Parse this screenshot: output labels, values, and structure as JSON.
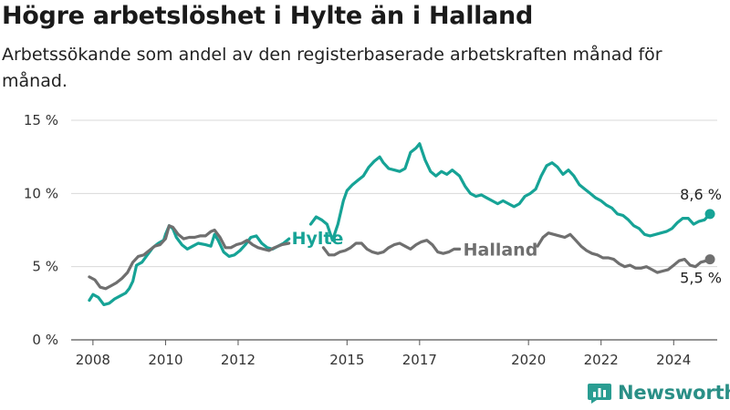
{
  "header": {
    "title": "Högre arbetslöshet i Hylte än i Halland",
    "subtitle": "Arbetssökande som andel av den registerbaserade arbetskraften månad för månad."
  },
  "brand": {
    "name": "Newsworthy",
    "icon": "bar-chart-logo-icon",
    "color": "#2a9d92"
  },
  "chart_data": {
    "type": "line",
    "ylim": [
      0,
      15
    ],
    "xlim": [
      2007.4,
      2025.2
    ],
    "y_ticks": [
      {
        "value": 0,
        "label": "0 %"
      },
      {
        "value": 5,
        "label": "5 %"
      },
      {
        "value": 10,
        "label": "10 %"
      },
      {
        "value": 15,
        "label": "15 %"
      }
    ],
    "x_ticks": [
      {
        "value": 2008,
        "label": "2008"
      },
      {
        "value": 2010,
        "label": "2010"
      },
      {
        "value": 2012,
        "label": "2012"
      },
      {
        "value": 2015,
        "label": "2015"
      },
      {
        "value": 2017,
        "label": "2017"
      },
      {
        "value": 2020,
        "label": "2020"
      },
      {
        "value": 2022,
        "label": "2022"
      },
      {
        "value": 2024,
        "label": "2024"
      }
    ],
    "grid": true,
    "series": [
      {
        "name": "Hylte",
        "color": "#16a396",
        "segments": [
          [
            [
              2007.9,
              2.7
            ],
            [
              2008.0,
              3.1
            ],
            [
              2008.15,
              2.9
            ],
            [
              2008.3,
              2.4
            ],
            [
              2008.45,
              2.5
            ],
            [
              2008.6,
              2.8
            ],
            [
              2008.75,
              3.0
            ],
            [
              2008.9,
              3.2
            ],
            [
              2009.0,
              3.5
            ],
            [
              2009.1,
              4.0
            ],
            [
              2009.2,
              5.1
            ],
            [
              2009.35,
              5.3
            ],
            [
              2009.5,
              5.8
            ],
            [
              2009.65,
              6.3
            ],
            [
              2009.8,
              6.6
            ],
            [
              2009.95,
              6.8
            ],
            [
              2010.0,
              7.2
            ],
            [
              2010.1,
              7.8
            ],
            [
              2010.2,
              7.6
            ],
            [
              2010.3,
              7.0
            ],
            [
              2010.45,
              6.5
            ],
            [
              2010.6,
              6.2
            ],
            [
              2010.75,
              6.4
            ],
            [
              2010.9,
              6.6
            ],
            [
              2011.1,
              6.5
            ],
            [
              2011.25,
              6.4
            ],
            [
              2011.35,
              7.2
            ],
            [
              2011.45,
              6.8
            ],
            [
              2011.6,
              6.0
            ],
            [
              2011.75,
              5.7
            ],
            [
              2011.9,
              5.8
            ],
            [
              2012.05,
              6.1
            ],
            [
              2012.2,
              6.5
            ],
            [
              2012.35,
              7.0
            ],
            [
              2012.5,
              7.1
            ],
            [
              2012.65,
              6.6
            ],
            [
              2012.8,
              6.3
            ],
            [
              2012.95,
              6.2
            ],
            [
              2013.1,
              6.4
            ],
            [
              2013.25,
              6.6
            ],
            [
              2013.4,
              6.9
            ]
          ],
          [
            [
              2014.0,
              7.9
            ],
            [
              2014.15,
              8.4
            ],
            [
              2014.3,
              8.2
            ],
            [
              2014.45,
              7.9
            ],
            [
              2014.6,
              6.8
            ],
            [
              2014.75,
              7.9
            ],
            [
              2014.9,
              9.5
            ],
            [
              2015.0,
              10.2
            ],
            [
              2015.15,
              10.6
            ],
            [
              2015.3,
              10.9
            ],
            [
              2015.45,
              11.2
            ],
            [
              2015.6,
              11.8
            ],
            [
              2015.75,
              12.2
            ],
            [
              2015.9,
              12.5
            ],
            [
              2016.0,
              12.1
            ],
            [
              2016.15,
              11.7
            ],
            [
              2016.3,
              11.6
            ],
            [
              2016.45,
              11.5
            ],
            [
              2016.6,
              11.7
            ],
            [
              2016.75,
              12.8
            ],
            [
              2016.9,
              13.1
            ],
            [
              2017.0,
              13.4
            ],
            [
              2017.15,
              12.3
            ],
            [
              2017.3,
              11.5
            ],
            [
              2017.45,
              11.2
            ],
            [
              2017.6,
              11.5
            ],
            [
              2017.75,
              11.3
            ],
            [
              2017.9,
              11.6
            ],
            [
              2018.1,
              11.2
            ],
            [
              2018.25,
              10.5
            ],
            [
              2018.4,
              10.0
            ],
            [
              2018.55,
              9.8
            ],
            [
              2018.7,
              9.9
            ],
            [
              2018.85,
              9.7
            ],
            [
              2019.0,
              9.5
            ],
            [
              2019.15,
              9.3
            ],
            [
              2019.3,
              9.5
            ],
            [
              2019.45,
              9.3
            ],
            [
              2019.6,
              9.1
            ],
            [
              2019.75,
              9.3
            ],
            [
              2019.9,
              9.8
            ],
            [
              2020.05,
              10.0
            ],
            [
              2020.2,
              10.3
            ],
            [
              2020.35,
              11.2
            ],
            [
              2020.5,
              11.9
            ],
            [
              2020.65,
              12.1
            ],
            [
              2020.8,
              11.8
            ],
            [
              2020.95,
              11.3
            ],
            [
              2021.1,
              11.6
            ],
            [
              2021.25,
              11.2
            ],
            [
              2021.4,
              10.6
            ],
            [
              2021.55,
              10.3
            ],
            [
              2021.7,
              10.0
            ],
            [
              2021.85,
              9.7
            ],
            [
              2022.0,
              9.5
            ],
            [
              2022.15,
              9.2
            ],
            [
              2022.3,
              9.0
            ],
            [
              2022.45,
              8.6
            ],
            [
              2022.6,
              8.5
            ],
            [
              2022.75,
              8.2
            ],
            [
              2022.9,
              7.8
            ],
            [
              2023.05,
              7.6
            ],
            [
              2023.2,
              7.2
            ],
            [
              2023.35,
              7.1
            ],
            [
              2023.5,
              7.2
            ],
            [
              2023.65,
              7.3
            ],
            [
              2023.8,
              7.4
            ],
            [
              2023.95,
              7.6
            ],
            [
              2024.1,
              8.0
            ],
            [
              2024.25,
              8.3
            ],
            [
              2024.4,
              8.3
            ],
            [
              2024.55,
              7.9
            ],
            [
              2024.7,
              8.1
            ],
            [
              2024.85,
              8.2
            ],
            [
              2025.0,
              8.6
            ]
          ]
        ],
        "label": "Hylte",
        "end_label": "8,6 %"
      },
      {
        "name": "Halland",
        "color": "#6f6f6f",
        "segments": [
          [
            [
              2007.9,
              4.3
            ],
            [
              2008.05,
              4.1
            ],
            [
              2008.2,
              3.6
            ],
            [
              2008.35,
              3.5
            ],
            [
              2008.5,
              3.7
            ],
            [
              2008.65,
              3.9
            ],
            [
              2008.8,
              4.2
            ],
            [
              2008.95,
              4.6
            ],
            [
              2009.1,
              5.3
            ],
            [
              2009.25,
              5.7
            ],
            [
              2009.4,
              5.8
            ],
            [
              2009.55,
              6.1
            ],
            [
              2009.7,
              6.4
            ],
            [
              2009.85,
              6.5
            ],
            [
              2010.0,
              6.9
            ],
            [
              2010.1,
              7.8
            ],
            [
              2010.2,
              7.7
            ],
            [
              2010.35,
              7.2
            ],
            [
              2010.5,
              6.9
            ],
            [
              2010.65,
              7.0
            ],
            [
              2010.8,
              7.0
            ],
            [
              2010.95,
              7.1
            ],
            [
              2011.1,
              7.1
            ],
            [
              2011.25,
              7.4
            ],
            [
              2011.35,
              7.5
            ],
            [
              2011.5,
              7.0
            ],
            [
              2011.65,
              6.3
            ],
            [
              2011.8,
              6.3
            ],
            [
              2011.95,
              6.5
            ],
            [
              2012.1,
              6.6
            ],
            [
              2012.25,
              6.8
            ],
            [
              2012.4,
              6.5
            ],
            [
              2012.55,
              6.3
            ],
            [
              2012.7,
              6.2
            ],
            [
              2012.85,
              6.1
            ],
            [
              2013.0,
              6.3
            ],
            [
              2013.2,
              6.5
            ],
            [
              2013.4,
              6.6
            ]
          ],
          [
            [
              2014.35,
              6.3
            ],
            [
              2014.5,
              5.8
            ],
            [
              2014.65,
              5.8
            ],
            [
              2014.8,
              6.0
            ],
            [
              2014.95,
              6.1
            ],
            [
              2015.1,
              6.3
            ],
            [
              2015.25,
              6.6
            ],
            [
              2015.4,
              6.6
            ],
            [
              2015.55,
              6.2
            ],
            [
              2015.7,
              6.0
            ],
            [
              2015.85,
              5.9
            ],
            [
              2016.0,
              6.0
            ],
            [
              2016.15,
              6.3
            ],
            [
              2016.3,
              6.5
            ],
            [
              2016.45,
              6.6
            ],
            [
              2016.6,
              6.4
            ],
            [
              2016.75,
              6.2
            ],
            [
              2016.9,
              6.5
            ],
            [
              2017.05,
              6.7
            ],
            [
              2017.2,
              6.8
            ],
            [
              2017.35,
              6.5
            ],
            [
              2017.5,
              6.0
            ],
            [
              2017.65,
              5.9
            ],
            [
              2017.8,
              6.0
            ],
            [
              2017.95,
              6.2
            ],
            [
              2018.1,
              6.2
            ]
          ],
          [
            [
              2020.25,
              6.4
            ],
            [
              2020.4,
              7.0
            ],
            [
              2020.55,
              7.3
            ],
            [
              2020.7,
              7.2
            ],
            [
              2020.85,
              7.1
            ],
            [
              2021.0,
              7.0
            ],
            [
              2021.15,
              7.2
            ],
            [
              2021.3,
              6.8
            ],
            [
              2021.45,
              6.4
            ],
            [
              2021.6,
              6.1
            ],
            [
              2021.75,
              5.9
            ],
            [
              2021.9,
              5.8
            ],
            [
              2022.05,
              5.6
            ],
            [
              2022.2,
              5.6
            ],
            [
              2022.35,
              5.5
            ],
            [
              2022.5,
              5.2
            ],
            [
              2022.65,
              5.0
            ],
            [
              2022.8,
              5.1
            ],
            [
              2022.95,
              4.9
            ],
            [
              2023.1,
              4.9
            ],
            [
              2023.25,
              5.0
            ],
            [
              2023.4,
              4.8
            ],
            [
              2023.55,
              4.6
            ],
            [
              2023.7,
              4.7
            ],
            [
              2023.85,
              4.8
            ],
            [
              2024.0,
              5.1
            ],
            [
              2024.15,
              5.4
            ],
            [
              2024.3,
              5.5
            ],
            [
              2024.45,
              5.1
            ],
            [
              2024.6,
              5.0
            ],
            [
              2024.75,
              5.3
            ],
            [
              2024.9,
              5.4
            ],
            [
              2025.0,
              5.5
            ]
          ]
        ],
        "label": "Halland",
        "end_label": "5,5 %"
      }
    ]
  }
}
